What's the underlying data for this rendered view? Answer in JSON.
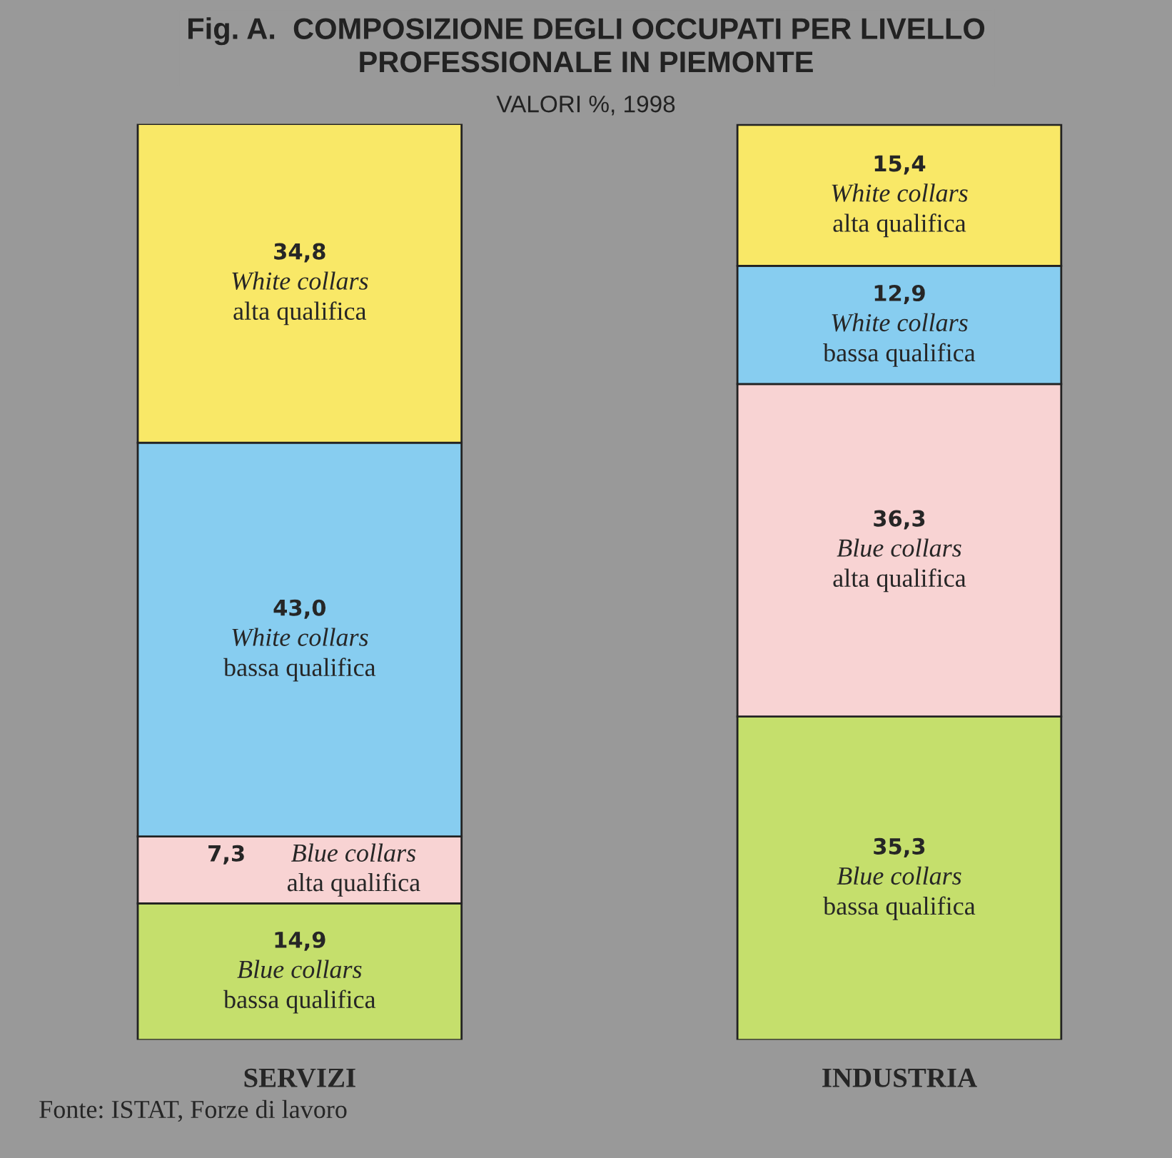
{
  "chart_data": {
    "type": "bar",
    "stacked": true,
    "title": "Fig. A.  COMPOSIZIONE DEGLI OCCUPATI PER LIVELLO\nPROFESSIONALE IN PIEMONTE",
    "subtitle": "VALORI %, 1998",
    "categories": [
      "SERVIZI",
      "INDUSTRIA"
    ],
    "series": [
      {
        "name": "Blue collars\nbassa qualifica",
        "color": "#c5df6c",
        "values": [
          14.9,
          35.3
        ],
        "value_labels": [
          "14,9",
          "35,3"
        ]
      },
      {
        "name": "Blue collars\nalta qualifica",
        "color": "#f8d3d3",
        "values": [
          7.3,
          36.3
        ],
        "value_labels": [
          "7,3",
          "36,3"
        ]
      },
      {
        "name": "White collars\nbassa qualifica",
        "color": "#87cdf0",
        "values": [
          43.0,
          12.9
        ],
        "value_labels": [
          "43,0",
          "12,9"
        ]
      },
      {
        "name": "White collars\nalta qualifica",
        "color": "#f9e867",
        "values": [
          34.8,
          15.4
        ],
        "value_labels": [
          "34,8",
          "15,4"
        ]
      }
    ],
    "annotations": [
      "Fonte: ISTAT, Forze di lavoro"
    ],
    "legend": false,
    "grid": false
  }
}
